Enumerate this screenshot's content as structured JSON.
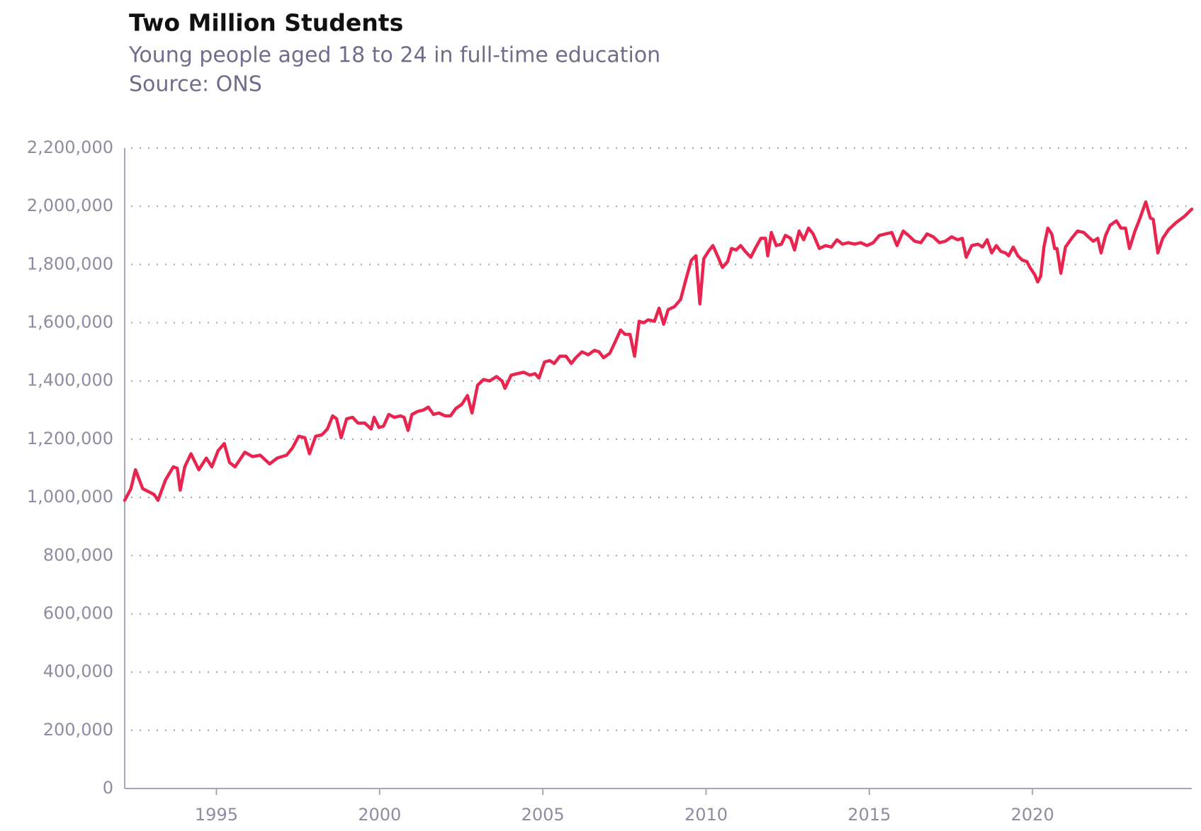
{
  "chart_data": {
    "type": "line",
    "title": "Two Million Students",
    "subtitle": "Young people aged 18 to 24 in full-time education",
    "source": "Source: ONS",
    "x": [
      1992.19,
      1992.38,
      1992.52,
      1992.74,
      1993.09,
      1993.21,
      1993.44,
      1993.68,
      1993.8,
      1993.89,
      1994.03,
      1994.22,
      1994.46,
      1994.69,
      1994.86,
      1995.05,
      1995.24,
      1995.4,
      1995.57,
      1995.87,
      1996.11,
      1996.34,
      1996.63,
      1996.86,
      1997.15,
      1997.33,
      1997.52,
      1997.71,
      1997.85,
      1998.04,
      1998.23,
      1998.4,
      1998.56,
      1998.68,
      1998.82,
      1998.99,
      1999.17,
      1999.34,
      1999.55,
      1999.74,
      1999.83,
      1999.98,
      2000.12,
      2000.28,
      2000.45,
      2000.64,
      2000.75,
      2000.87,
      2000.99,
      2001.16,
      2001.34,
      2001.49,
      2001.65,
      2001.82,
      2002.0,
      2002.17,
      2002.33,
      2002.52,
      2002.69,
      2002.83,
      2003.0,
      2003.18,
      2003.37,
      2003.58,
      2003.75,
      2003.84,
      2004.03,
      2004.22,
      2004.41,
      2004.6,
      2004.76,
      2004.88,
      2005.05,
      2005.21,
      2005.35,
      2005.52,
      2005.71,
      2005.87,
      2006.01,
      2006.2,
      2006.39,
      2006.58,
      2006.72,
      2006.86,
      2007.05,
      2007.24,
      2007.38,
      2007.52,
      2007.67,
      2007.81,
      2007.95,
      2008.09,
      2008.23,
      2008.42,
      2008.56,
      2008.7,
      2008.84,
      2009.03,
      2009.22,
      2009.41,
      2009.55,
      2009.69,
      2009.81,
      2009.93,
      2010.07,
      2010.21,
      2010.35,
      2010.5,
      2010.66,
      2010.78,
      2010.92,
      2011.06,
      2011.2,
      2011.37,
      2011.53,
      2011.68,
      2011.82,
      2011.89,
      2012.0,
      2012.15,
      2012.31,
      2012.43,
      2012.59,
      2012.71,
      2012.85,
      2012.99,
      2013.14,
      2013.28,
      2013.47,
      2013.66,
      2013.84,
      2014.01,
      2014.18,
      2014.36,
      2014.55,
      2014.74,
      2014.93,
      2015.12,
      2015.31,
      2015.5,
      2015.69,
      2015.85,
      2016.04,
      2016.2,
      2016.39,
      2016.58,
      2016.77,
      2016.96,
      2017.15,
      2017.33,
      2017.52,
      2017.71,
      2017.85,
      2017.97,
      2018.14,
      2018.33,
      2018.47,
      2018.61,
      2018.75,
      2018.89,
      2019.03,
      2019.17,
      2019.27,
      2019.41,
      2019.55,
      2019.69,
      2019.83,
      2019.92,
      2020.07,
      2020.16,
      2020.25,
      2020.35,
      2020.47,
      2020.59,
      2020.68,
      2020.75,
      2020.87,
      2021.01,
      2021.2,
      2021.38,
      2021.57,
      2021.71,
      2021.86,
      2022.0,
      2022.1,
      2022.24,
      2022.38,
      2022.57,
      2022.71,
      2022.85,
      2022.97,
      2023.14,
      2023.28,
      2023.47,
      2023.61,
      2023.7,
      2023.84,
      2023.99,
      2024.17,
      2024.41,
      2024.65,
      2024.88
    ],
    "series": [
      {
        "color": "#e8254f",
        "values": [
          990000,
          1030000,
          1095000,
          1030000,
          1010000,
          990000,
          1060000,
          1105000,
          1100000,
          1025000,
          1105000,
          1150000,
          1095000,
          1135000,
          1105000,
          1160000,
          1185000,
          1120000,
          1105000,
          1155000,
          1140000,
          1145000,
          1115000,
          1135000,
          1145000,
          1170000,
          1210000,
          1205000,
          1150000,
          1210000,
          1215000,
          1235000,
          1280000,
          1270000,
          1205000,
          1270000,
          1275000,
          1255000,
          1255000,
          1235000,
          1275000,
          1240000,
          1245000,
          1285000,
          1275000,
          1280000,
          1275000,
          1230000,
          1285000,
          1295000,
          1300000,
          1310000,
          1285000,
          1290000,
          1280000,
          1280000,
          1305000,
          1320000,
          1350000,
          1290000,
          1385000,
          1405000,
          1400000,
          1415000,
          1400000,
          1375000,
          1420000,
          1425000,
          1430000,
          1420000,
          1425000,
          1410000,
          1465000,
          1470000,
          1460000,
          1485000,
          1485000,
          1460000,
          1480000,
          1500000,
          1490000,
          1505000,
          1500000,
          1480000,
          1495000,
          1540000,
          1575000,
          1560000,
          1560000,
          1485000,
          1605000,
          1600000,
          1610000,
          1605000,
          1650000,
          1595000,
          1645000,
          1655000,
          1680000,
          1760000,
          1815000,
          1830000,
          1665000,
          1820000,
          1845000,
          1865000,
          1830000,
          1790000,
          1810000,
          1855000,
          1850000,
          1865000,
          1845000,
          1825000,
          1860000,
          1890000,
          1890000,
          1830000,
          1910000,
          1865000,
          1870000,
          1900000,
          1890000,
          1850000,
          1915000,
          1885000,
          1925000,
          1905000,
          1855000,
          1865000,
          1860000,
          1885000,
          1870000,
          1875000,
          1870000,
          1875000,
          1865000,
          1875000,
          1900000,
          1905000,
          1910000,
          1865000,
          1915000,
          1900000,
          1880000,
          1875000,
          1905000,
          1895000,
          1875000,
          1880000,
          1895000,
          1885000,
          1890000,
          1825000,
          1865000,
          1870000,
          1860000,
          1885000,
          1840000,
          1865000,
          1845000,
          1840000,
          1830000,
          1860000,
          1830000,
          1815000,
          1810000,
          1790000,
          1765000,
          1740000,
          1760000,
          1860000,
          1925000,
          1905000,
          1855000,
          1855000,
          1770000,
          1860000,
          1890000,
          1915000,
          1910000,
          1895000,
          1880000,
          1890000,
          1840000,
          1900000,
          1935000,
          1950000,
          1925000,
          1925000,
          1855000,
          1915000,
          1955000,
          2015000,
          1960000,
          1955000,
          1840000,
          1890000,
          1920000,
          1945000,
          1965000,
          1990000
        ]
      }
    ],
    "xlim": [
      1992.19,
      2024.88
    ],
    "xticks": [
      1995,
      2000,
      2005,
      2010,
      2015,
      2020
    ],
    "ylim": [
      0,
      2200000
    ],
    "yticks": [
      0,
      {
        "value": 200000,
        "label": "200,000"
      },
      {
        "value": 400000,
        "label": "400,000"
      },
      {
        "value": 600000,
        "label": "600,000"
      },
      {
        "value": 800000,
        "label": "800,000"
      },
      {
        "value": 1000000,
        "label": "1,000,000"
      },
      {
        "value": 1200000,
        "label": "1,200,000"
      },
      {
        "value": 1400000,
        "label": "1,400,000"
      },
      {
        "value": 1600000,
        "label": "1,600,000"
      },
      {
        "value": 1800000,
        "label": "1,800,000"
      },
      {
        "value": 2000000,
        "label": "2,000,000"
      },
      {
        "value": 2200000,
        "label": "2,200,000"
      }
    ],
    "grid": true
  }
}
